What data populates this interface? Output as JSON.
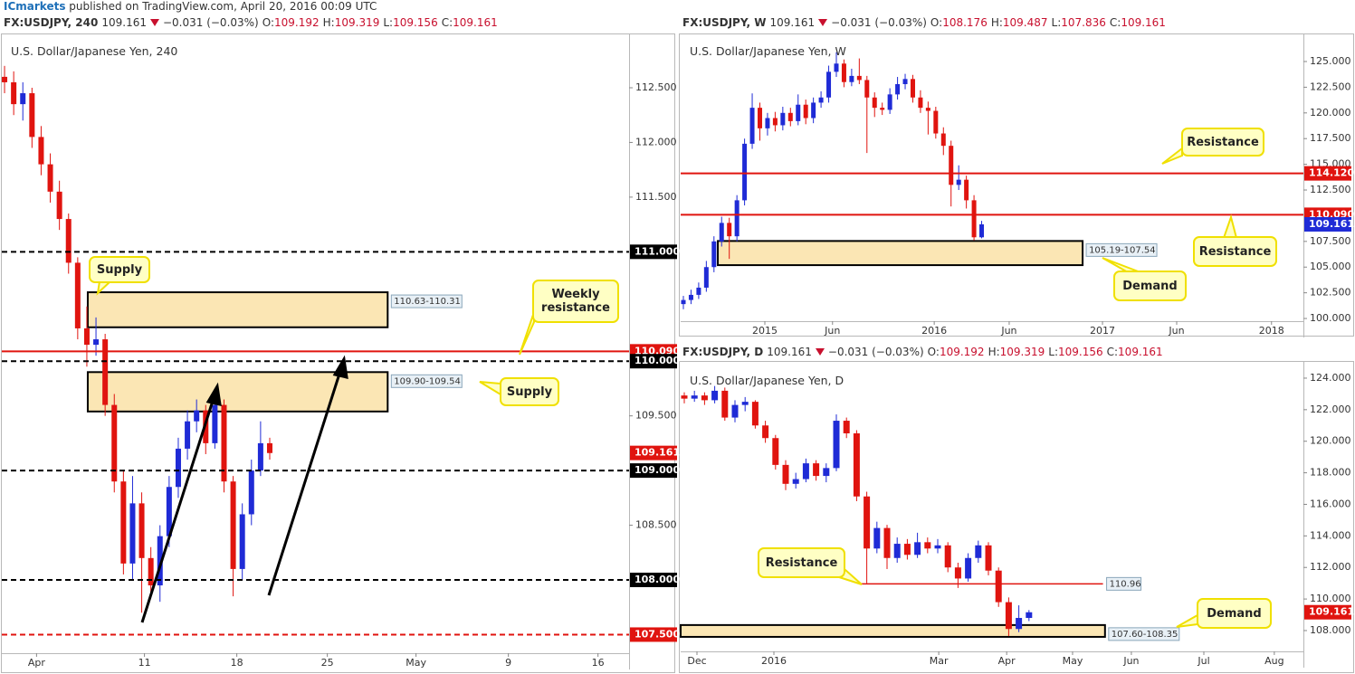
{
  "top_bar": {
    "brand": "ICmarkets",
    "text": "published on TradingView.com, April 20, 2016 00:09 UTC"
  },
  "chart_data": [
    {
      "type": "candlestick",
      "title": "U.S. Dollar/Japanese Yen, 240",
      "header": {
        "symbol": "FX:USDJPY, 240",
        "last": "109.161",
        "change": "−0.031 (−0.03%)",
        "ohlc": [
          {
            "key": "O:",
            "value": "109.192"
          },
          {
            "key": "H:",
            "value": "109.319"
          },
          {
            "key": "L:",
            "value": "109.156"
          },
          {
            "key": "C:",
            "value": "109.161"
          }
        ]
      },
      "up_color": "#1f2bd6",
      "down_color": "#e0140f",
      "xlim": [
        -0.3,
        68.3
      ],
      "ylim": [
        107.33,
        112.988
      ],
      "xticks": [
        {
          "value": 3.5,
          "label": "Apr"
        },
        {
          "value": 15.3,
          "label": "11"
        },
        {
          "value": 25.4,
          "label": "18"
        },
        {
          "value": 35.3,
          "label": "25"
        },
        {
          "value": 45.0,
          "label": "May"
        },
        {
          "value": 55.1,
          "label": "9"
        },
        {
          "value": 64.9,
          "label": "16"
        }
      ],
      "yticks": [
        {
          "value": 112.5,
          "label": "112.500"
        },
        {
          "value": 112.0,
          "label": "112.000"
        },
        {
          "value": 111.5,
          "label": "111.500"
        },
        {
          "value": 109.5,
          "label": "109.500"
        },
        {
          "value": 108.5,
          "label": "108.500"
        }
      ],
      "candles": [
        [
          112.6,
          112.7,
          112.45,
          112.55
        ],
        [
          112.55,
          112.65,
          112.25,
          112.35
        ],
        [
          112.35,
          112.55,
          112.2,
          112.45
        ],
        [
          112.45,
          112.5,
          111.95,
          112.05
        ],
        [
          112.05,
          112.15,
          111.7,
          111.8
        ],
        [
          111.8,
          111.9,
          111.45,
          111.55
        ],
        [
          111.55,
          111.65,
          111.2,
          111.3
        ],
        [
          111.3,
          111.35,
          110.8,
          110.9
        ],
        [
          110.9,
          110.95,
          110.2,
          110.3
        ],
        [
          110.3,
          110.5,
          109.95,
          110.15
        ],
        [
          110.15,
          110.4,
          110.05,
          110.2
        ],
        [
          110.2,
          110.25,
          109.5,
          109.6
        ],
        [
          109.6,
          109.7,
          108.8,
          108.9
        ],
        [
          108.9,
          109.0,
          108.05,
          108.15
        ],
        [
          108.15,
          108.95,
          108.0,
          108.7
        ],
        [
          108.7,
          108.8,
          107.7,
          108.2
        ],
        [
          108.2,
          108.3,
          107.85,
          107.95
        ],
        [
          107.95,
          108.5,
          107.8,
          108.4
        ],
        [
          108.4,
          108.95,
          108.3,
          108.85
        ],
        [
          108.85,
          109.3,
          108.75,
          109.2
        ],
        [
          109.2,
          109.55,
          109.1,
          109.45
        ],
        [
          109.45,
          109.65,
          109.35,
          109.55
        ],
        [
          109.55,
          109.6,
          109.15,
          109.25
        ],
        [
          109.25,
          109.7,
          109.2,
          109.6
        ],
        [
          109.6,
          109.65,
          108.8,
          108.9
        ],
        [
          108.9,
          108.95,
          107.85,
          108.1
        ],
        [
          108.1,
          108.7,
          108.0,
          108.6
        ],
        [
          108.6,
          109.1,
          108.5,
          109.0
        ],
        [
          109.0,
          109.45,
          108.95,
          109.25
        ],
        [
          109.25,
          109.3,
          109.1,
          109.16
        ]
      ],
      "levels": [
        {
          "value": 111.0,
          "label": "111.000",
          "color": "#000000",
          "line": "dashed"
        },
        {
          "value": 110.09,
          "label": "110.090",
          "color": "#e0140f",
          "line": "solid"
        },
        {
          "value": 110.0,
          "label": "110.000",
          "color": "#000000",
          "line": "dashed"
        },
        {
          "value": 109.161,
          "label": "109.161",
          "color": "#e0140f",
          "line": "none"
        },
        {
          "value": 109.0,
          "label": "109.000",
          "color": "#000000",
          "line": "dashed"
        },
        {
          "value": 108.0,
          "label": "108.000",
          "color": "#000000",
          "line": "dashed"
        },
        {
          "value": 107.5,
          "label": "107.500",
          "color": "#e0140f",
          "line": "dashed"
        }
      ],
      "zones": [
        {
          "from": 9.1,
          "to": 41.9,
          "low": 110.31,
          "high": 110.63,
          "label": "110.63-110.31"
        },
        {
          "from": 9.1,
          "to": 41.9,
          "low": 109.54,
          "high": 109.9,
          "label": "109.90-109.54"
        }
      ],
      "annotations": [
        "Supply",
        "Weekly resistance",
        "Supply"
      ]
    },
    {
      "type": "candlestick",
      "title": "U.S. Dollar/Japanese Yen, W",
      "header": {
        "symbol": "FX:USDJPY, W",
        "last": "109.161",
        "change": "−0.031 (−0.03%)",
        "ohlc": [
          {
            "key": "O:",
            "value": "108.176"
          },
          {
            "key": "H:",
            "value": "109.487"
          },
          {
            "key": "L:",
            "value": "107.836"
          },
          {
            "key": "C:",
            "value": "109.161"
          }
        ]
      },
      "up_color": "#1f2bd6",
      "down_color": "#e0140f",
      "xlim": [
        -0.355,
        81.07
      ],
      "ylim": [
        99.74,
        127.64
      ],
      "xticks": [
        {
          "value": 10.65,
          "label": "2015"
        },
        {
          "value": 19.5,
          "label": "Jun"
        },
        {
          "value": 32.8,
          "label": "2016"
        },
        {
          "value": 42.6,
          "label": "Jun"
        },
        {
          "value": 54.8,
          "label": "2017"
        },
        {
          "value": 64.5,
          "label": "Jun"
        },
        {
          "value": 76.9,
          "label": "2018"
        }
      ],
      "yticks": [
        {
          "value": 125.0,
          "label": "125.000"
        },
        {
          "value": 122.5,
          "label": "122.500"
        },
        {
          "value": 120.0,
          "label": "120.000"
        },
        {
          "value": 117.5,
          "label": "117.500"
        },
        {
          "value": 115.0,
          "label": "115.000"
        },
        {
          "value": 112.5,
          "label": "112.500"
        },
        {
          "value": 107.5,
          "label": "107.500"
        },
        {
          "value": 105.0,
          "label": "105.000"
        },
        {
          "value": 102.5,
          "label": "102.500"
        },
        {
          "value": 100.0,
          "label": "100.000"
        }
      ],
      "candles": [
        [
          101.4,
          102.2,
          100.9,
          101.8
        ],
        [
          101.8,
          102.8,
          101.4,
          102.3
        ],
        [
          102.3,
          103.5,
          101.9,
          103
        ],
        [
          103,
          105.6,
          102.6,
          105
        ],
        [
          105,
          108,
          104.5,
          107.5
        ],
        [
          107.5,
          109.9,
          107,
          109.3
        ],
        [
          109.3,
          109.8,
          105.8,
          108
        ],
        [
          108,
          112,
          107.5,
          111.5
        ],
        [
          111.5,
          117.5,
          111,
          117
        ],
        [
          117,
          121.9,
          116.5,
          120.5
        ],
        [
          120.5,
          121,
          117.3,
          118.5
        ],
        [
          118.5,
          120,
          117.8,
          119.5
        ],
        [
          119.5,
          120.1,
          118.2,
          118.8
        ],
        [
          118.8,
          120.6,
          118.3,
          120
        ],
        [
          120,
          120.5,
          118.7,
          119.2
        ],
        [
          119.2,
          121.8,
          118.8,
          120.8
        ],
        [
          120.8,
          121.3,
          118.9,
          119.5
        ],
        [
          119.5,
          121.5,
          119,
          121
        ],
        [
          121,
          122.1,
          120.5,
          121.5
        ],
        [
          121.5,
          124.6,
          121,
          124
        ],
        [
          124,
          125.9,
          123.5,
          124.8
        ],
        [
          124.8,
          125.2,
          122.5,
          123
        ],
        [
          123,
          124.3,
          122.6,
          123.6
        ],
        [
          123.6,
          125.3,
          122.8,
          123.2
        ],
        [
          123.2,
          123.6,
          116.1,
          121.5
        ],
        [
          121.5,
          122,
          119.6,
          120.5
        ],
        [
          120.5,
          121,
          119.8,
          120.3
        ],
        [
          120.3,
          122.4,
          119.9,
          121.8
        ],
        [
          121.8,
          123.5,
          121.3,
          122.8
        ],
        [
          122.8,
          123.8,
          122.3,
          123.3
        ],
        [
          123.3,
          123.7,
          121,
          121.5
        ],
        [
          121.5,
          122.2,
          120,
          120.5
        ],
        [
          120.5,
          121.1,
          117.9,
          120.2
        ],
        [
          120.2,
          120.6,
          117.5,
          118
        ],
        [
          118,
          118.6,
          115.9,
          116.8
        ],
        [
          116.8,
          117.3,
          110.9,
          113
        ],
        [
          113,
          114.9,
          112.5,
          113.5
        ],
        [
          113.5,
          113.9,
          110.7,
          111.5
        ],
        [
          111.5,
          112,
          107.6,
          107.9
        ],
        [
          107.9,
          109.5,
          107.8,
          109.16
        ]
      ],
      "levels": [
        {
          "value": 114.12,
          "label": "114.120",
          "color": "#e0140f",
          "line": "solid"
        },
        {
          "value": 110.09,
          "label": "110.090",
          "color": "#e0140f",
          "line": "solid"
        },
        {
          "value": 109.161,
          "label": "109.161",
          "color": "#1f2bd6",
          "line": "none"
        }
      ],
      "zones": [
        {
          "from": 4.5,
          "to": 52.2,
          "low": 105.19,
          "high": 107.54,
          "label": "105.19-107.54"
        }
      ],
      "annotations": [
        "Resistance",
        "Resistance",
        "Demand"
      ]
    },
    {
      "type": "candlestick",
      "title": "U.S. Dollar/Japanese Yen, D",
      "header": {
        "symbol": "FX:USDJPY, D",
        "last": "109.161",
        "change": "−0.031 (−0.03%)",
        "ohlc": [
          {
            "key": "O:",
            "value": "109.192"
          },
          {
            "key": "H:",
            "value": "109.319"
          },
          {
            "key": "L:",
            "value": "109.156"
          },
          {
            "key": "C:",
            "value": "109.161"
          }
        ]
      },
      "up_color": "#1f2bd6",
      "down_color": "#e0140f",
      "xlim": [
        -0.357,
        61.07
      ],
      "ylim": [
        106.68,
        125.03
      ],
      "xticks": [
        {
          "value": 1.25,
          "label": "Dec"
        },
        {
          "value": 8.84,
          "label": "2016"
        },
        {
          "value": 25.1,
          "label": "Mar"
        },
        {
          "value": 31.8,
          "label": "Apr"
        },
        {
          "value": 38.3,
          "label": "May"
        },
        {
          "value": 44.1,
          "label": "Jun"
        },
        {
          "value": 51.25,
          "label": "Jul"
        },
        {
          "value": 58.2,
          "label": "Aug"
        }
      ],
      "yticks": [
        {
          "value": 124.0,
          "label": "124.000"
        },
        {
          "value": 122.0,
          "label": "122.000"
        },
        {
          "value": 120.0,
          "label": "120.000"
        },
        {
          "value": 118.0,
          "label": "118.000"
        },
        {
          "value": 116.0,
          "label": "116.000"
        },
        {
          "value": 114.0,
          "label": "114.000"
        },
        {
          "value": 112.0,
          "label": "112.000"
        },
        {
          "value": 110.0,
          "label": "110.000"
        },
        {
          "value": 108.0,
          "label": "108.000"
        }
      ],
      "candles": [
        [
          122.9,
          123.1,
          122.4,
          122.7
        ],
        [
          122.7,
          123.2,
          122.5,
          122.9
        ],
        [
          122.9,
          123.1,
          122.3,
          122.6
        ],
        [
          122.6,
          123.5,
          122.4,
          123.2
        ],
        [
          123.2,
          123.4,
          121.3,
          121.5
        ],
        [
          121.5,
          122.6,
          121.2,
          122.3
        ],
        [
          122.3,
          122.8,
          121.9,
          122.5
        ],
        [
          122.5,
          122.6,
          120.8,
          121
        ],
        [
          121,
          121.3,
          119.9,
          120.2
        ],
        [
          120.2,
          120.4,
          118.2,
          118.5
        ],
        [
          118.5,
          118.8,
          116.9,
          117.3
        ],
        [
          117.3,
          118,
          117,
          117.6
        ],
        [
          117.6,
          118.9,
          117.4,
          118.6
        ],
        [
          118.6,
          118.8,
          117.5,
          117.8
        ],
        [
          117.8,
          118.6,
          117.4,
          118.3
        ],
        [
          118.3,
          121.7,
          118.1,
          121.3
        ],
        [
          121.3,
          121.5,
          120.2,
          120.5
        ],
        [
          120.5,
          120.7,
          116.2,
          116.5
        ],
        [
          116.5,
          116.8,
          111,
          113.2
        ],
        [
          113.2,
          114.9,
          112.9,
          114.5
        ],
        [
          114.5,
          114.7,
          111.9,
          112.6
        ],
        [
          112.6,
          113.9,
          112.3,
          113.5
        ],
        [
          113.5,
          113.8,
          112.5,
          112.8
        ],
        [
          112.8,
          114.2,
          112.6,
          113.6
        ],
        [
          113.6,
          113.9,
          112.9,
          113.2
        ],
        [
          113.2,
          113.8,
          112.9,
          113.4
        ],
        [
          113.4,
          113.6,
          111.7,
          112
        ],
        [
          112,
          112.3,
          110.7,
          111.3
        ],
        [
          111.3,
          112.9,
          111.1,
          112.6
        ],
        [
          112.6,
          113.7,
          112.3,
          113.4
        ],
        [
          113.4,
          113.6,
          111.5,
          111.8
        ],
        [
          111.8,
          112,
          109.5,
          109.8
        ],
        [
          109.8,
          110.1,
          107.65,
          108.1
        ],
        [
          108.1,
          109.6,
          107.9,
          108.8
        ],
        [
          108.8,
          109.3,
          108.6,
          109.16
        ]
      ],
      "levels": [
        {
          "value": 109.161,
          "label": "109.161",
          "color": "#e0140f",
          "line": "none"
        }
      ],
      "segments": [
        {
          "from": 17.4,
          "to": 41.3,
          "value": 110.96,
          "label": "110.96",
          "color": "#e0140f"
        }
      ],
      "zones": [
        {
          "from": -0.357,
          "to": 41.5,
          "low": 107.6,
          "high": 108.35,
          "label": "107.60-108.35"
        }
      ],
      "annotations": [
        "Resistance",
        "Demand"
      ]
    }
  ]
}
